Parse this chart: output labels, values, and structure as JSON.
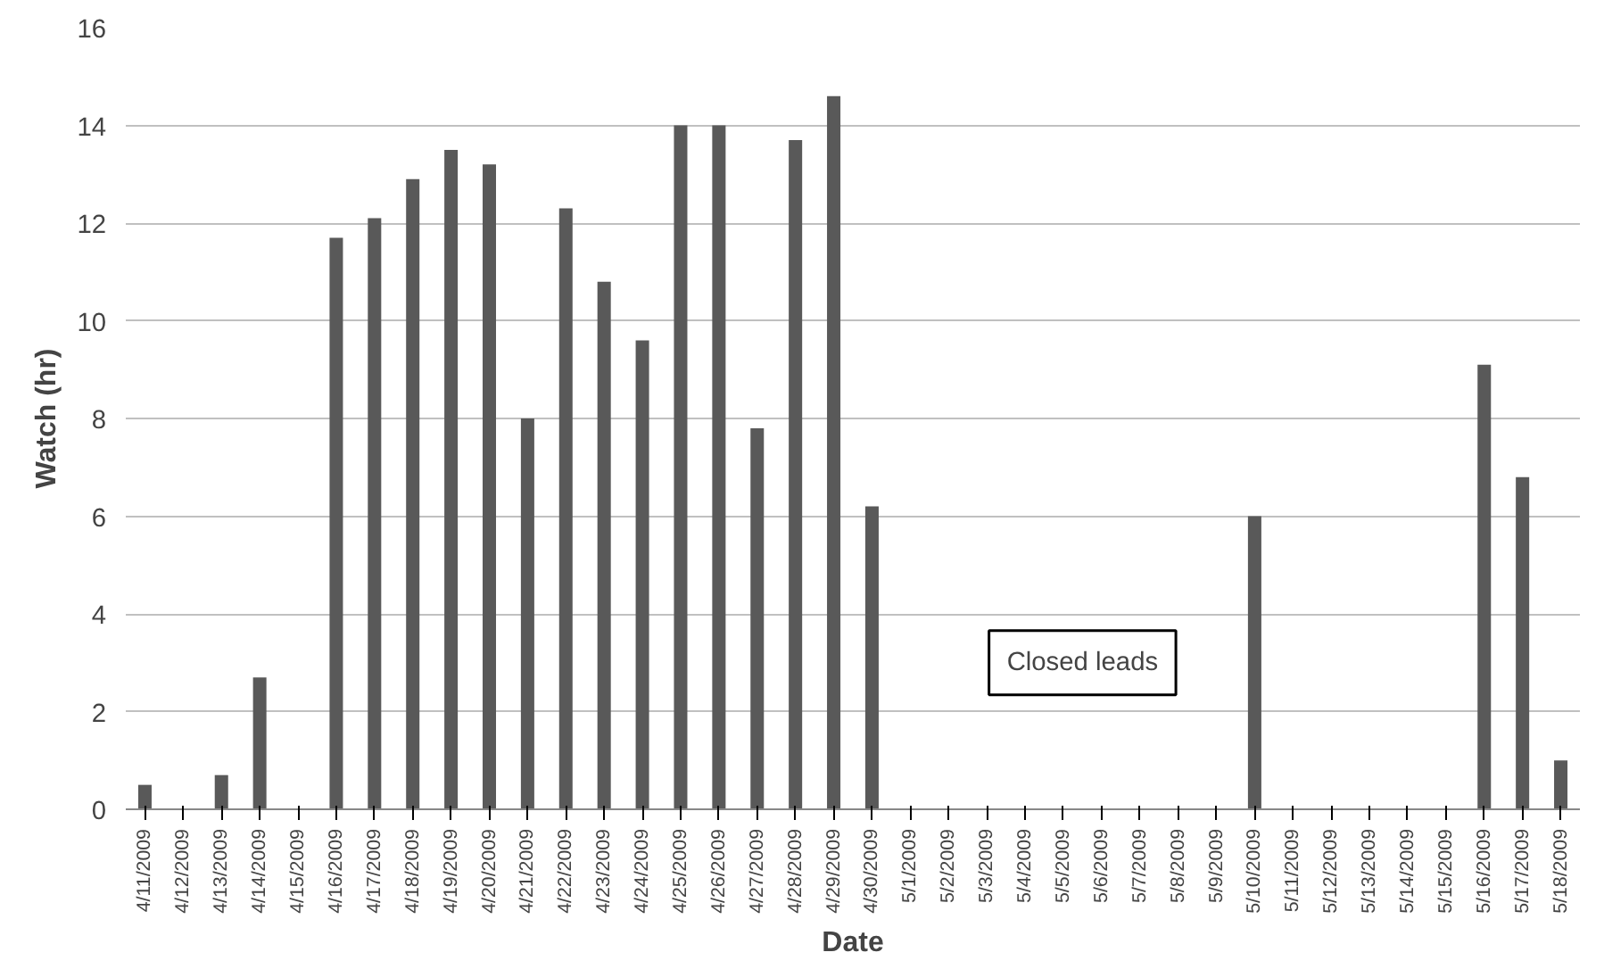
{
  "chart_data": {
    "type": "bar",
    "xlabel": "Date",
    "ylabel": "Watch (hr)",
    "categories": [
      "4/11/2009",
      "4/12/2009",
      "4/13/2009",
      "4/14/2009",
      "4/15/2009",
      "4/16/2009",
      "4/17/2009",
      "4/18/2009",
      "4/19/2009",
      "4/20/2009",
      "4/21/2009",
      "4/22/2009",
      "4/23/2009",
      "4/24/2009",
      "4/25/2009",
      "4/26/2009",
      "4/27/2009",
      "4/28/2009",
      "4/29/2009",
      "4/30/2009",
      "5/1/2009",
      "5/2/2009",
      "5/3/2009",
      "5/4/2009",
      "5/5/2009",
      "5/6/2009",
      "5/7/2009",
      "5/8/2009",
      "5/9/2009",
      "5/10/2009",
      "5/11/2009",
      "5/12/2009",
      "5/13/2009",
      "5/14/2009",
      "5/15/2009",
      "5/16/2009",
      "5/17/2009",
      "5/18/2009"
    ],
    "values": [
      0.5,
      0,
      0.7,
      2.7,
      0,
      11.7,
      12.1,
      12.9,
      13.5,
      13.2,
      8.0,
      12.3,
      10.8,
      9.6,
      14.0,
      14.0,
      7.8,
      13.7,
      14.6,
      6.2,
      0,
      0,
      0,
      0,
      0,
      0,
      0,
      0,
      0,
      6.0,
      0,
      0,
      0,
      0,
      0,
      9.1,
      6.8,
      1.0
    ],
    "color": "#595959",
    "ylim": [
      0,
      16
    ],
    "yticks": [
      0,
      2,
      4,
      6,
      8,
      10,
      12,
      14,
      16
    ],
    "grid": "y",
    "annotations": [
      "Closed leads"
    ]
  }
}
